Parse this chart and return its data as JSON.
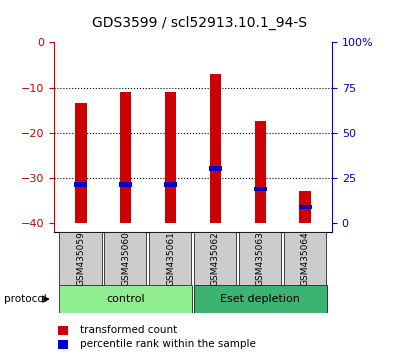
{
  "title": "GDS3599 / scl52913.10.1_94-S",
  "samples": [
    "GSM435059",
    "GSM435060",
    "GSM435061",
    "GSM435062",
    "GSM435063",
    "GSM435064"
  ],
  "red_bar_top": [
    -13.5,
    -11.0,
    -11.0,
    -7.0,
    -17.5,
    -33.0
  ],
  "red_bar_bottom": [
    -40.0,
    -40.0,
    -40.0,
    -40.0,
    -40.0,
    -40.0
  ],
  "blue_marker_pos": [
    -31.5,
    -31.5,
    -31.5,
    -28.0,
    -32.5,
    -36.5
  ],
  "ylim": [
    -42,
    0
  ],
  "yticks_left": [
    0,
    -10,
    -20,
    -30,
    -40
  ],
  "yticks_right_vals": [
    100,
    75,
    50,
    25,
    0
  ],
  "groups": [
    {
      "label": "control",
      "samples": [
        0,
        1,
        2
      ],
      "color": "#90ee90"
    },
    {
      "label": "Eset depletion",
      "samples": [
        3,
        4,
        5
      ],
      "color": "#3cb371"
    }
  ],
  "bar_color": "#cc0000",
  "blue_color": "#0000cc",
  "left_axis_color": "#cc0000",
  "right_axis_color": "#0000cc",
  "title_fontsize": 10,
  "tick_fontsize": 8,
  "bar_width": 0.25
}
